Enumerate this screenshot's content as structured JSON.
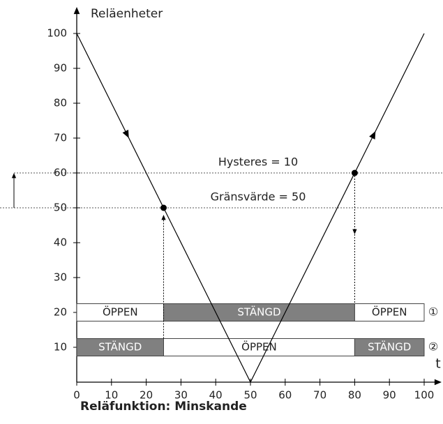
{
  "chart_data": {
    "type": "line",
    "ylabel": "Reläenheter",
    "xlabel": "t",
    "x": [
      0,
      50,
      100
    ],
    "series": [
      {
        "color": "#000000",
        "values": [
          100,
          0,
          100
        ]
      }
    ],
    "xlim": [
      0,
      100
    ],
    "ylim": [
      0,
      100
    ],
    "xticks": [
      0,
      10,
      20,
      30,
      40,
      50,
      60,
      70,
      80,
      90,
      100
    ],
    "yticks": [
      10,
      20,
      30,
      40,
      50,
      60,
      70,
      80,
      90,
      100
    ],
    "annotations": [
      {
        "text": "Hysteres = 10",
        "y": 60
      },
      {
        "text": "Gränsvärde = 50",
        "y": 50
      }
    ],
    "points": [
      {
        "x": 25,
        "y": 50
      },
      {
        "x": 80,
        "y": 60
      }
    ],
    "relays": [
      {
        "label": "①",
        "y": 20,
        "segments": [
          {
            "start": 0,
            "end": 25,
            "text": "ÖPPEN",
            "color": "#ffffff"
          },
          {
            "start": 25,
            "end": 80,
            "text": "STÄNGD",
            "color": "#808080"
          },
          {
            "start": 80,
            "end": 100,
            "text": "ÖPPEN",
            "color": "#ffffff"
          }
        ]
      },
      {
        "label": "②",
        "y": 10,
        "segments": [
          {
            "start": 0,
            "end": 25,
            "text": "STÄNGD",
            "color": "#808080"
          },
          {
            "start": 25,
            "end": 80,
            "text": "ÖPPEN",
            "color": "#ffffff"
          },
          {
            "start": 80,
            "end": 100,
            "text": "STÄNGD",
            "color": "#808080"
          }
        ]
      }
    ],
    "caption": "Reläfunktion: Minskande"
  }
}
